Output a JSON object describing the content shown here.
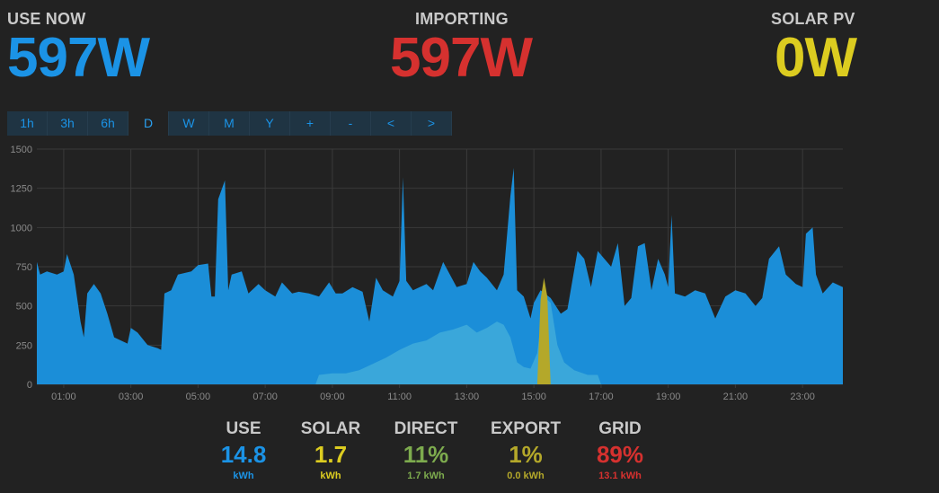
{
  "header": {
    "use_now": {
      "title": "USE NOW",
      "value": "597W",
      "color": "#1b93e6"
    },
    "importing": {
      "title": "IMPORTING",
      "value": "597W",
      "color": "#d6312f"
    },
    "solar_pv": {
      "title": "SOLAR PV",
      "value": "0W",
      "color": "#dccc20"
    }
  },
  "toolbar": {
    "buttons": [
      "1h",
      "3h",
      "6h",
      "D",
      "W",
      "M",
      "Y",
      "+",
      "-",
      "<",
      ">"
    ],
    "active": "D"
  },
  "summary": {
    "use": {
      "title": "USE",
      "value": "14.8",
      "unit": "kWh",
      "color": "#1b93e6"
    },
    "solar": {
      "title": "SOLAR",
      "value": "1.7",
      "unit": "kWh",
      "color": "#dccc20"
    },
    "direct": {
      "title": "DIRECT",
      "value": "11%",
      "unit": "1.7 kWh",
      "color": "#7dab4e"
    },
    "export": {
      "title": "EXPORT",
      "value": "1%",
      "unit": "0.0 kWh",
      "color": "#b4a82a"
    },
    "grid": {
      "title": "GRID",
      "value": "89%",
      "unit": "13.1 kWh",
      "color": "#d6312f"
    }
  },
  "chart_data": {
    "type": "area",
    "ylim": [
      0,
      1500
    ],
    "yticks": [
      0,
      250,
      500,
      750,
      1000,
      1250,
      1500
    ],
    "xlim": [
      0.2,
      24.2
    ],
    "xticks": [
      "01:00",
      "03:00",
      "05:00",
      "07:00",
      "09:00",
      "11:00",
      "13:00",
      "15:00",
      "17:00",
      "19:00",
      "21:00",
      "23:00"
    ],
    "grid": true,
    "series": [
      {
        "key": "use",
        "color": "#1b8ed8",
        "points": [
          [
            0.2,
            780
          ],
          [
            0.3,
            700
          ],
          [
            0.5,
            720
          ],
          [
            0.8,
            700
          ],
          [
            1.0,
            720
          ],
          [
            1.1,
            830
          ],
          [
            1.3,
            700
          ],
          [
            1.5,
            400
          ],
          [
            1.6,
            300
          ],
          [
            1.7,
            580
          ],
          [
            1.9,
            640
          ],
          [
            2.1,
            580
          ],
          [
            2.3,
            450
          ],
          [
            2.5,
            300
          ],
          [
            2.7,
            280
          ],
          [
            2.9,
            260
          ],
          [
            3.0,
            360
          ],
          [
            3.2,
            330
          ],
          [
            3.5,
            250
          ],
          [
            3.8,
            230
          ],
          [
            3.9,
            220
          ],
          [
            4.0,
            580
          ],
          [
            4.2,
            600
          ],
          [
            4.4,
            700
          ],
          [
            4.8,
            720
          ],
          [
            5.0,
            760
          ],
          [
            5.3,
            770
          ],
          [
            5.4,
            560
          ],
          [
            5.5,
            560
          ],
          [
            5.6,
            1180
          ],
          [
            5.8,
            1300
          ],
          [
            5.9,
            600
          ],
          [
            6.0,
            700
          ],
          [
            6.3,
            720
          ],
          [
            6.5,
            580
          ],
          [
            6.8,
            640
          ],
          [
            7.0,
            600
          ],
          [
            7.3,
            560
          ],
          [
            7.5,
            650
          ],
          [
            7.8,
            580
          ],
          [
            8.0,
            590
          ],
          [
            8.3,
            580
          ],
          [
            8.6,
            560
          ],
          [
            8.9,
            650
          ],
          [
            9.1,
            580
          ],
          [
            9.3,
            580
          ],
          [
            9.6,
            620
          ],
          [
            9.9,
            590
          ],
          [
            10.1,
            400
          ],
          [
            10.3,
            680
          ],
          [
            10.5,
            600
          ],
          [
            10.8,
            560
          ],
          [
            11.0,
            660
          ],
          [
            11.1,
            1320
          ],
          [
            11.2,
            660
          ],
          [
            11.4,
            600
          ],
          [
            11.6,
            620
          ],
          [
            11.8,
            640
          ],
          [
            12.0,
            600
          ],
          [
            12.3,
            780
          ],
          [
            12.5,
            700
          ],
          [
            12.7,
            620
          ],
          [
            13.0,
            640
          ],
          [
            13.2,
            780
          ],
          [
            13.4,
            720
          ],
          [
            13.6,
            680
          ],
          [
            13.9,
            600
          ],
          [
            14.1,
            700
          ],
          [
            14.3,
            1200
          ],
          [
            14.4,
            1380
          ],
          [
            14.5,
            600
          ],
          [
            14.7,
            560
          ],
          [
            14.9,
            420
          ],
          [
            15.0,
            520
          ],
          [
            15.2,
            600
          ],
          [
            15.5,
            550
          ],
          [
            15.8,
            450
          ],
          [
            16.0,
            480
          ],
          [
            16.3,
            850
          ],
          [
            16.5,
            800
          ],
          [
            16.7,
            620
          ],
          [
            16.9,
            850
          ],
          [
            17.1,
            800
          ],
          [
            17.3,
            750
          ],
          [
            17.5,
            900
          ],
          [
            17.7,
            500
          ],
          [
            17.9,
            550
          ],
          [
            18.1,
            880
          ],
          [
            18.3,
            900
          ],
          [
            18.5,
            600
          ],
          [
            18.7,
            800
          ],
          [
            18.9,
            700
          ],
          [
            19.0,
            620
          ],
          [
            19.1,
            1080
          ],
          [
            19.2,
            580
          ],
          [
            19.5,
            560
          ],
          [
            19.8,
            600
          ],
          [
            20.1,
            580
          ],
          [
            20.4,
            420
          ],
          [
            20.7,
            560
          ],
          [
            21.0,
            600
          ],
          [
            21.3,
            580
          ],
          [
            21.6,
            500
          ],
          [
            21.8,
            550
          ],
          [
            22.0,
            800
          ],
          [
            22.3,
            880
          ],
          [
            22.5,
            700
          ],
          [
            22.8,
            640
          ],
          [
            23.0,
            620
          ],
          [
            23.1,
            960
          ],
          [
            23.3,
            1000
          ],
          [
            23.4,
            700
          ],
          [
            23.6,
            580
          ],
          [
            23.9,
            650
          ],
          [
            24.2,
            620
          ]
        ]
      },
      {
        "key": "solar",
        "color": "#3aa7da",
        "points": [
          [
            8.5,
            0
          ],
          [
            8.6,
            60
          ],
          [
            9.0,
            70
          ],
          [
            9.4,
            70
          ],
          [
            9.8,
            90
          ],
          [
            10.2,
            130
          ],
          [
            10.6,
            170
          ],
          [
            11.0,
            220
          ],
          [
            11.4,
            260
          ],
          [
            11.8,
            280
          ],
          [
            12.2,
            330
          ],
          [
            12.6,
            350
          ],
          [
            13.0,
            380
          ],
          [
            13.3,
            330
          ],
          [
            13.6,
            360
          ],
          [
            13.9,
            400
          ],
          [
            14.1,
            380
          ],
          [
            14.3,
            300
          ],
          [
            14.5,
            140
          ],
          [
            14.7,
            110
          ],
          [
            14.9,
            100
          ],
          [
            15.1,
            200
          ],
          [
            15.3,
            560
          ],
          [
            15.5,
            520
          ],
          [
            15.7,
            250
          ],
          [
            15.9,
            140
          ],
          [
            16.2,
            90
          ],
          [
            16.6,
            60
          ],
          [
            16.9,
            60
          ],
          [
            17.0,
            0
          ]
        ]
      },
      {
        "key": "export",
        "color": "#b4a82a",
        "points": [
          [
            15.1,
            0
          ],
          [
            15.2,
            540
          ],
          [
            15.3,
            680
          ],
          [
            15.4,
            560
          ],
          [
            15.5,
            0
          ]
        ]
      }
    ]
  }
}
